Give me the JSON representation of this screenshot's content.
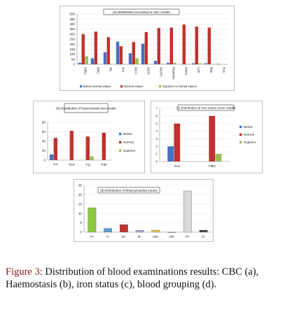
{
  "caption": {
    "label": "Figure 3:",
    "text": "Distribution of blood examinations results: CBC (a), Haemostasis (b), iron status (c), blood grouping (d)."
  },
  "colors": {
    "below": "#4472c4",
    "normal": "#c0312e",
    "superior": "#9bbb59"
  },
  "chart_data": [
    {
      "id": "a",
      "type": "bar",
      "title": "(a) Distribution according to CBC results",
      "categories": [
        "WBC",
        "RBC",
        "Hb",
        "Hct",
        "MCV",
        "MCH",
        "MCHC",
        "Platelets",
        "Mono",
        "Lym",
        "Neu",
        "Eos"
      ],
      "series": [
        {
          "name": "Below normal values",
          "values": [
            15,
            60,
            120,
            225,
            110,
            205,
            35,
            15,
            0,
            10,
            10,
            5
          ]
        },
        {
          "name": "Normal values",
          "values": [
            300,
            325,
            270,
            180,
            220,
            320,
            360,
            365,
            395,
            375,
            365,
            0
          ]
        },
        {
          "name": "Superior to normal values",
          "values": [
            80,
            5,
            5,
            5,
            60,
            5,
            5,
            15,
            5,
            10,
            5,
            0
          ]
        }
      ],
      "ylim": [
        0,
        500
      ],
      "yticks": [
        0,
        50,
        100,
        150,
        200,
        250,
        300,
        350,
        400,
        450,
        500
      ],
      "legend": "bottom"
    },
    {
      "id": "b",
      "type": "bar",
      "title": "(b) Distribution of haemostasis test results",
      "categories": [
        "PT",
        "TCK",
        "TQ",
        "FIB"
      ],
      "series": [
        {
          "name": "Below",
          "values": [
            12,
            0,
            0,
            0
          ]
        },
        {
          "name": "Normal",
          "values": [
            47,
            62,
            50,
            58
          ]
        },
        {
          "name": "Superior",
          "values": [
            0,
            0,
            8,
            0
          ]
        }
      ],
      "ylim": [
        0,
        80
      ],
      "yticks": [
        0,
        20,
        40,
        60,
        80
      ],
      "legend": "right"
    },
    {
      "id": "c",
      "type": "bar",
      "title": "(c) Distribution of iron status exam results",
      "categories": [
        "Iron",
        "TIBC"
      ],
      "series": [
        {
          "name": "Below",
          "values": [
            2,
            0
          ]
        },
        {
          "name": "Normal",
          "values": [
            5,
            6
          ]
        },
        {
          "name": "Superior",
          "values": [
            0,
            1
          ]
        }
      ],
      "ylim": [
        0,
        7
      ],
      "yticks": [
        0,
        1,
        2,
        3,
        4,
        5,
        6,
        7
      ],
      "legend": "right"
    },
    {
      "id": "d",
      "type": "bar",
      "title": "(d) Distribution of blood grouping exams",
      "categories": [
        "A+",
        "A-",
        "B+",
        "B-",
        "AB+",
        "AB-",
        "O+",
        "O-"
      ],
      "values": [
        13,
        2,
        4,
        1,
        1,
        0,
        22,
        1
      ],
      "colors": [
        "#8dc63f",
        "#5b9bd5",
        "#c0312e",
        "#b4a7d6",
        "#f2c94c",
        "#9fd3e6",
        "#d9d9d9",
        "#404040"
      ],
      "ylim": [
        0,
        25
      ],
      "yticks": [
        0,
        5,
        10,
        15,
        20,
        25
      ]
    }
  ]
}
